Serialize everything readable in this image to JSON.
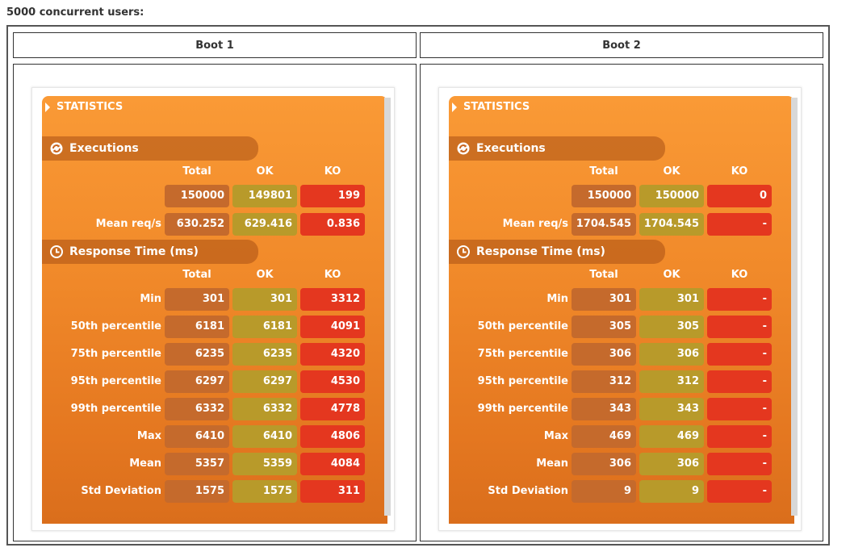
{
  "caption": "5000 concurrent users:",
  "columns": [
    "Boot 1",
    "Boot 2"
  ],
  "panel": {
    "title": "STATISTICS",
    "executions_label": "Executions",
    "response_label": "Response Time (ms)",
    "headers": {
      "total": "Total",
      "ok": "OK",
      "ko": "KO"
    },
    "mean_reqs_label": "Mean req/s",
    "response_rows": [
      "Min",
      "50th percentile",
      "75th percentile",
      "95th percentile",
      "99th percentile",
      "Max",
      "Mean",
      "Std Deviation"
    ]
  },
  "boots": [
    {
      "executions": {
        "total": "150000",
        "ok": "149801",
        "ko": "199"
      },
      "mean_reqs": {
        "total": "630.252",
        "ok": "629.416",
        "ko": "0.836"
      },
      "response": [
        {
          "total": "301",
          "ok": "301",
          "ko": "3312"
        },
        {
          "total": "6181",
          "ok": "6181",
          "ko": "4091"
        },
        {
          "total": "6235",
          "ok": "6235",
          "ko": "4320"
        },
        {
          "total": "6297",
          "ok": "6297",
          "ko": "4530"
        },
        {
          "total": "6332",
          "ok": "6332",
          "ko": "4778"
        },
        {
          "total": "6410",
          "ok": "6410",
          "ko": "4806"
        },
        {
          "total": "5357",
          "ok": "5359",
          "ko": "4084"
        },
        {
          "total": "1575",
          "ok": "1575",
          "ko": "311"
        }
      ]
    },
    {
      "executions": {
        "total": "150000",
        "ok": "150000",
        "ko": "0"
      },
      "mean_reqs": {
        "total": "1704.545",
        "ok": "1704.545",
        "ko": "-"
      },
      "response": [
        {
          "total": "301",
          "ok": "301",
          "ko": "-"
        },
        {
          "total": "305",
          "ok": "305",
          "ko": "-"
        },
        {
          "total": "306",
          "ok": "306",
          "ko": "-"
        },
        {
          "total": "312",
          "ok": "312",
          "ko": "-"
        },
        {
          "total": "343",
          "ok": "343",
          "ko": "-"
        },
        {
          "total": "469",
          "ok": "469",
          "ko": "-"
        },
        {
          "total": "306",
          "ok": "306",
          "ko": "-"
        },
        {
          "total": "9",
          "ok": "9",
          "ko": "-"
        }
      ]
    }
  ],
  "colors": {
    "total_cell": "#c56a2c",
    "ok_cell": "#b89a2a",
    "ko_cell": "#e4371f",
    "panel_orange": "#f18a2a"
  }
}
